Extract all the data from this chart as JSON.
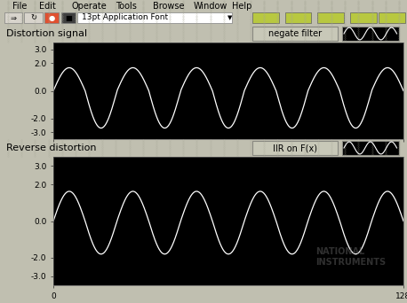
{
  "bg_color": "#c0bfb0",
  "plot_bg": "#000000",
  "wave_color": "#ffffff",
  "title1": "Distortion signal",
  "title2": "Reverse distortion",
  "label1": "negate filter",
  "label2": "IIR on F(x)",
  "ylim": [
    -3.5,
    3.5
  ],
  "yticks": [
    -3.0,
    -2.0,
    0.0,
    2.0,
    3.0
  ],
  "ytick_labels": [
    "-3.0",
    "-2.0",
    "0.0",
    "2.0",
    "3.0"
  ],
  "xlim": [
    0,
    128
  ],
  "xtick_labels": [
    "0",
    "128"
  ],
  "n_points": 2000,
  "freq1": 5.5,
  "amp1": 2.7,
  "freq2": 5.5,
  "amp2": 1.8,
  "toolbar_color": "#c8c8b8",
  "menubar_color": "#c8c8b8",
  "grid_color": "#b0b0a0",
  "tick_label_size": 6.5,
  "title_fontsize": 8,
  "menu_fontsize": 7,
  "menu_items": [
    "File",
    "Edit",
    "Operate",
    "Tools",
    "Browse",
    "Window",
    "Help"
  ],
  "menu_positions": [
    0.03,
    0.095,
    0.175,
    0.285,
    0.375,
    0.475,
    0.57
  ],
  "toolbar_text": "13pt Application Font"
}
